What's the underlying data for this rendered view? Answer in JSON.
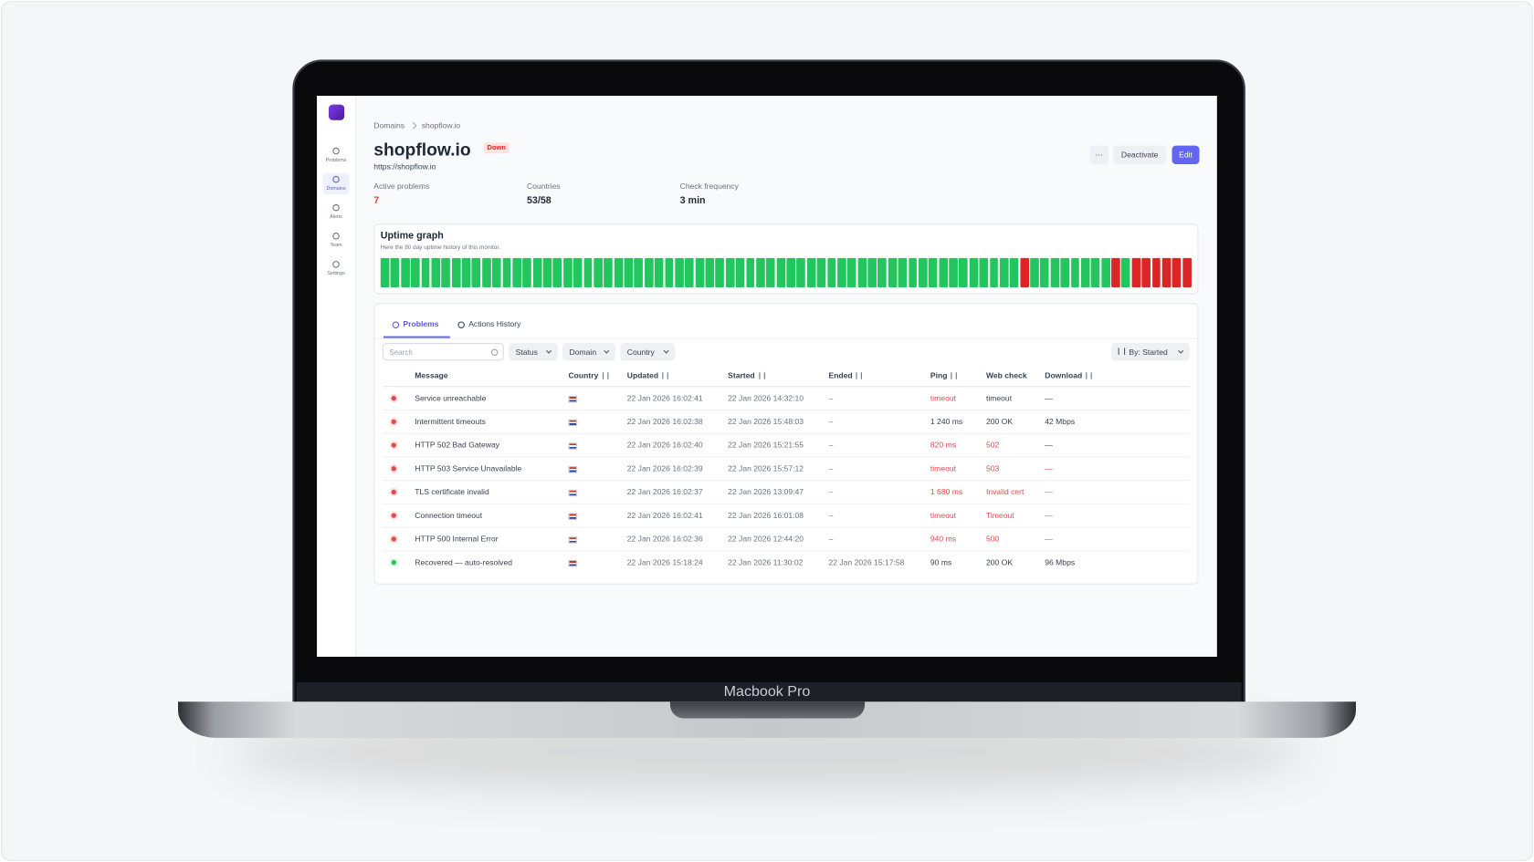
{
  "device_label": "Macbook Pro",
  "sidebar": {
    "items": [
      {
        "label": "Problems",
        "active": false
      },
      {
        "label": "Domains",
        "active": true
      },
      {
        "label": "Alerts",
        "active": false
      },
      {
        "label": "Team",
        "active": false
      },
      {
        "label": "Settings",
        "active": false
      }
    ]
  },
  "breadcrumb": [
    "Domains",
    "shopflow.io"
  ],
  "header": {
    "title": "shopflow.io",
    "badge": "Down",
    "url": "https://shopflow.io",
    "actions": [
      "···",
      "Deactivate",
      "Edit"
    ]
  },
  "stats": [
    {
      "label": "Active problems",
      "value": "7",
      "color": "#e5484d"
    },
    {
      "label": "Countries",
      "value": "53/58",
      "color": "#1f2937"
    },
    {
      "label": "Check frequency",
      "value": "3 min",
      "color": "#1f2937"
    }
  ],
  "uptime_graph": {
    "title": "Uptime graph",
    "subtitle": "Here the 80 day uptime history of this monitor.",
    "colors": {
      "up": "#22c55e",
      "down": "#dc2626"
    },
    "days": [
      "up",
      "up",
      "up",
      "up",
      "up",
      "up",
      "up",
      "up",
      "up",
      "up",
      "up",
      "up",
      "up",
      "up",
      "up",
      "up",
      "up",
      "up",
      "up",
      "up",
      "up",
      "up",
      "up",
      "up",
      "up",
      "up",
      "up",
      "up",
      "up",
      "up",
      "up",
      "up",
      "up",
      "up",
      "up",
      "up",
      "up",
      "up",
      "up",
      "up",
      "up",
      "up",
      "up",
      "up",
      "up",
      "up",
      "up",
      "up",
      "up",
      "up",
      "up",
      "up",
      "up",
      "up",
      "up",
      "up",
      "up",
      "up",
      "up",
      "up",
      "up",
      "up",
      "up",
      "down",
      "up",
      "up",
      "up",
      "up",
      "up",
      "up",
      "up",
      "up",
      "down",
      "up",
      "down",
      "down",
      "down",
      "down",
      "down",
      "down"
    ]
  },
  "tabs": [
    {
      "label": "Problems",
      "active": true
    },
    {
      "label": "Actions History",
      "active": false
    }
  ],
  "filters": {
    "search_placeholder": "Search",
    "dropdowns": [
      "Status",
      "Domain",
      "Country"
    ],
    "sort": "By: Started"
  },
  "table": {
    "columns": [
      "Message",
      "Country",
      "Updated",
      "Started",
      "Ended",
      "Ping",
      "Web check",
      "Download"
    ],
    "sortable": [
      false,
      true,
      true,
      true,
      true,
      true,
      false,
      true
    ],
    "rows": [
      [
        "Service unreachable",
        "22 Jan 2026 16:02:41",
        "22 Jan 2026 14:32:10",
        "–",
        "timeout",
        "timeout",
        "—"
      ],
      [
        "Intermittent timeouts",
        "22 Jan 2026 16:02:38",
        "22 Jan 2026 15:48:03",
        "–",
        "1 240 ms",
        "200 OK",
        "42 Mbps"
      ],
      [
        "HTTP 502 Bad Gateway",
        "22 Jan 2026 16:02:40",
        "22 Jan 2026 15:21:55",
        "–",
        "820 ms",
        "502",
        "—"
      ],
      [
        "HTTP 503 Service Unavailable",
        "22 Jan 2026 16:02:39",
        "22 Jan 2026 15:57:12",
        "–",
        "timeout",
        "503",
        "—"
      ],
      [
        "TLS certificate invalid",
        "22 Jan 2026 16:02:37",
        "22 Jan 2026 13:09:47",
        "–",
        "1 680 ms",
        "Invalid cert",
        "—"
      ],
      [
        "Connection timeout",
        "22 Jan 2026 16:02:41",
        "22 Jan 2026 16:01:08",
        "–",
        "timeout",
        "Timeout",
        "—"
      ],
      [
        "HTTP 500 Internal Error",
        "22 Jan 2026 16:02:36",
        "22 Jan 2026 12:44:20",
        "–",
        "940 ms",
        "500",
        "—"
      ],
      [
        "Recovered — auto-resolved",
        "22 Jan 2026 15:18:24",
        "22 Jan 2026 11:30:02",
        "22 Jan 2026 15:17:58",
        "90 ms",
        "200 OK",
        "96 Mbps"
      ]
    ],
    "row_status": [
      "down",
      "down",
      "down",
      "down",
      "down",
      "down",
      "down",
      "up"
    ],
    "red_cells": [
      [
        4
      ],
      [],
      [
        4,
        5
      ],
      [
        4,
        5,
        6
      ],
      [
        4,
        5,
        6
      ],
      [
        4,
        5,
        6
      ],
      [
        4,
        5,
        6
      ],
      []
    ]
  }
}
